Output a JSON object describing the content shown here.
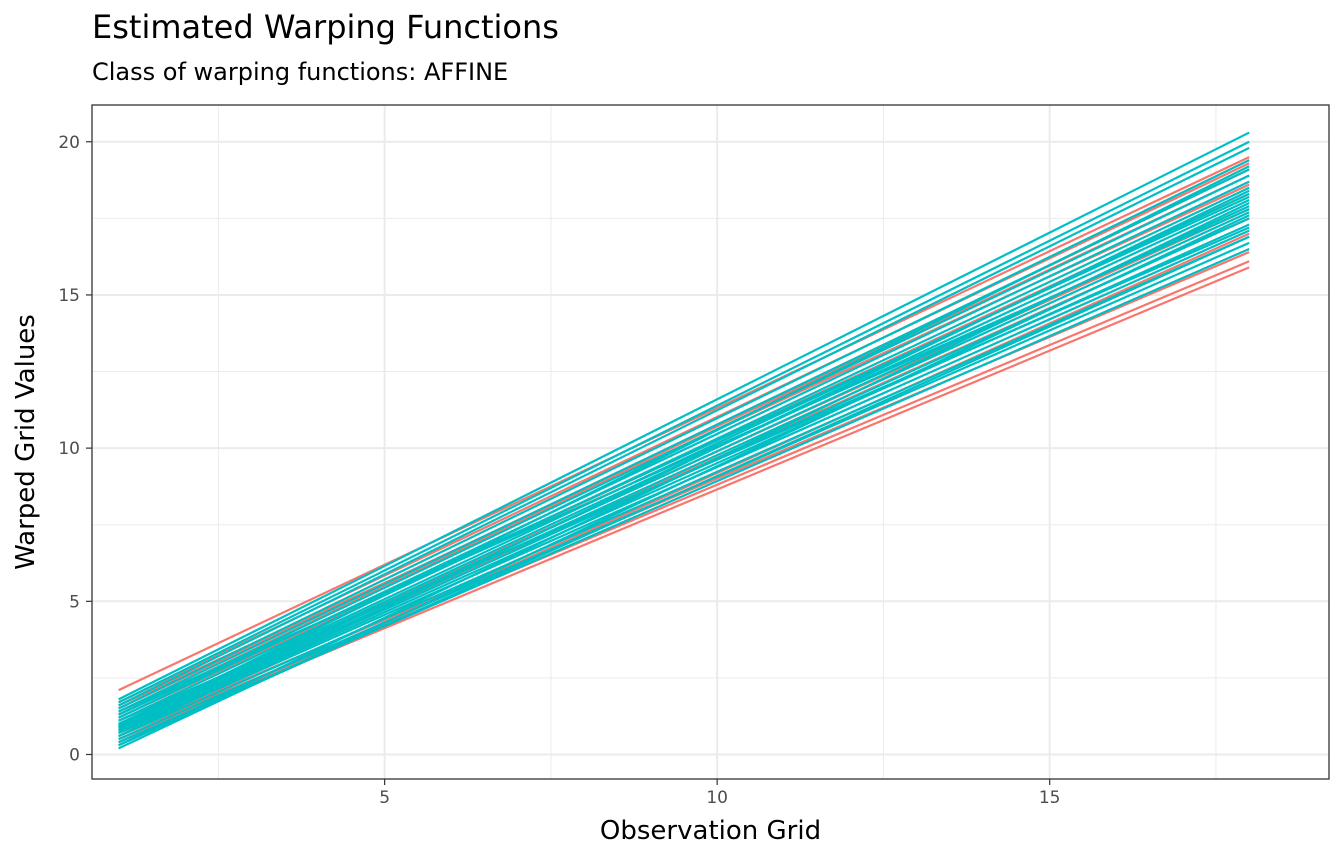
{
  "chart_data": {
    "type": "line",
    "title": "Estimated Warping Functions",
    "subtitle": "Class of warping functions: AFFINE",
    "xlabel": "Observation Grid",
    "ylabel": "Warped Grid Values",
    "xlim": [
      0.6,
      19.2
    ],
    "ylim": [
      -0.8,
      21.2
    ],
    "x_ticks": [
      5,
      10,
      15
    ],
    "y_ticks": [
      0,
      5,
      10,
      15,
      20
    ],
    "x_tick_labels": [
      "5",
      "10",
      "15"
    ],
    "y_tick_labels": [
      "0",
      "5",
      "10",
      "15",
      "20"
    ],
    "grid": true,
    "legend": "none",
    "x_range": [
      1,
      18
    ],
    "colors": {
      "class_1": "#F8766D",
      "class_2": "#00BFC4"
    },
    "series": [
      {
        "color": "#F8766D",
        "values": [
          2.1,
          19.5
        ]
      },
      {
        "color": "#F8766D",
        "values": [
          1.7,
          19.3
        ]
      },
      {
        "color": "#F8766D",
        "values": [
          1.6,
          18.6
        ]
      },
      {
        "color": "#F8766D",
        "values": [
          1.3,
          19.1
        ]
      },
      {
        "color": "#F8766D",
        "values": [
          1.0,
          17.8
        ]
      },
      {
        "color": "#F8766D",
        "values": [
          0.9,
          17.5
        ]
      },
      {
        "color": "#F8766D",
        "values": [
          0.7,
          16.4
        ]
      },
      {
        "color": "#F8766D",
        "values": [
          0.6,
          16.1
        ]
      },
      {
        "color": "#F8766D",
        "values": [
          0.5,
          15.9
        ]
      },
      {
        "color": "#F8766D",
        "values": [
          0.4,
          17.0
        ]
      },
      {
        "color": "#F8766D",
        "values": [
          1.5,
          18.9
        ]
      },
      {
        "color": "#F8766D",
        "values": [
          1.2,
          18.3
        ]
      },
      {
        "color": "#00BFC4",
        "values": [
          1.8,
          20.3
        ]
      },
      {
        "color": "#00BFC4",
        "values": [
          1.7,
          20.0
        ]
      },
      {
        "color": "#00BFC4",
        "values": [
          1.6,
          19.8
        ]
      },
      {
        "color": "#00BFC4",
        "values": [
          1.5,
          19.4
        ]
      },
      {
        "color": "#00BFC4",
        "values": [
          1.4,
          19.1
        ]
      },
      {
        "color": "#00BFC4",
        "values": [
          1.3,
          18.9
        ]
      },
      {
        "color": "#00BFC4",
        "values": [
          1.2,
          18.7
        ]
      },
      {
        "color": "#00BFC4",
        "values": [
          1.1,
          18.5
        ]
      },
      {
        "color": "#00BFC4",
        "values": [
          1.0,
          18.3
        ]
      },
      {
        "color": "#00BFC4",
        "values": [
          0.95,
          18.1
        ]
      },
      {
        "color": "#00BFC4",
        "values": [
          0.9,
          17.9
        ]
      },
      {
        "color": "#00BFC4",
        "values": [
          0.85,
          17.7
        ]
      },
      {
        "color": "#00BFC4",
        "values": [
          0.8,
          17.5
        ]
      },
      {
        "color": "#00BFC4",
        "values": [
          0.75,
          17.3
        ]
      },
      {
        "color": "#00BFC4",
        "values": [
          0.7,
          17.1
        ]
      },
      {
        "color": "#00BFC4",
        "values": [
          0.6,
          16.9
        ]
      },
      {
        "color": "#00BFC4",
        "values": [
          0.5,
          16.7
        ]
      },
      {
        "color": "#00BFC4",
        "values": [
          0.4,
          16.5
        ]
      },
      {
        "color": "#00BFC4",
        "values": [
          0.3,
          18.0
        ]
      },
      {
        "color": "#00BFC4",
        "values": [
          0.2,
          17.6
        ]
      },
      {
        "color": "#00BFC4",
        "values": [
          1.1,
          17.2
        ]
      },
      {
        "color": "#00BFC4",
        "values": [
          1.3,
          18.2
        ]
      },
      {
        "color": "#00BFC4",
        "values": [
          0.6,
          18.4
        ]
      },
      {
        "color": "#00BFC4",
        "values": [
          0.9,
          19.2
        ]
      },
      {
        "color": "#00BFC4",
        "values": [
          1.4,
          17.8
        ]
      },
      {
        "color": "#00BFC4",
        "values": [
          0.3,
          16.9
        ]
      }
    ]
  }
}
